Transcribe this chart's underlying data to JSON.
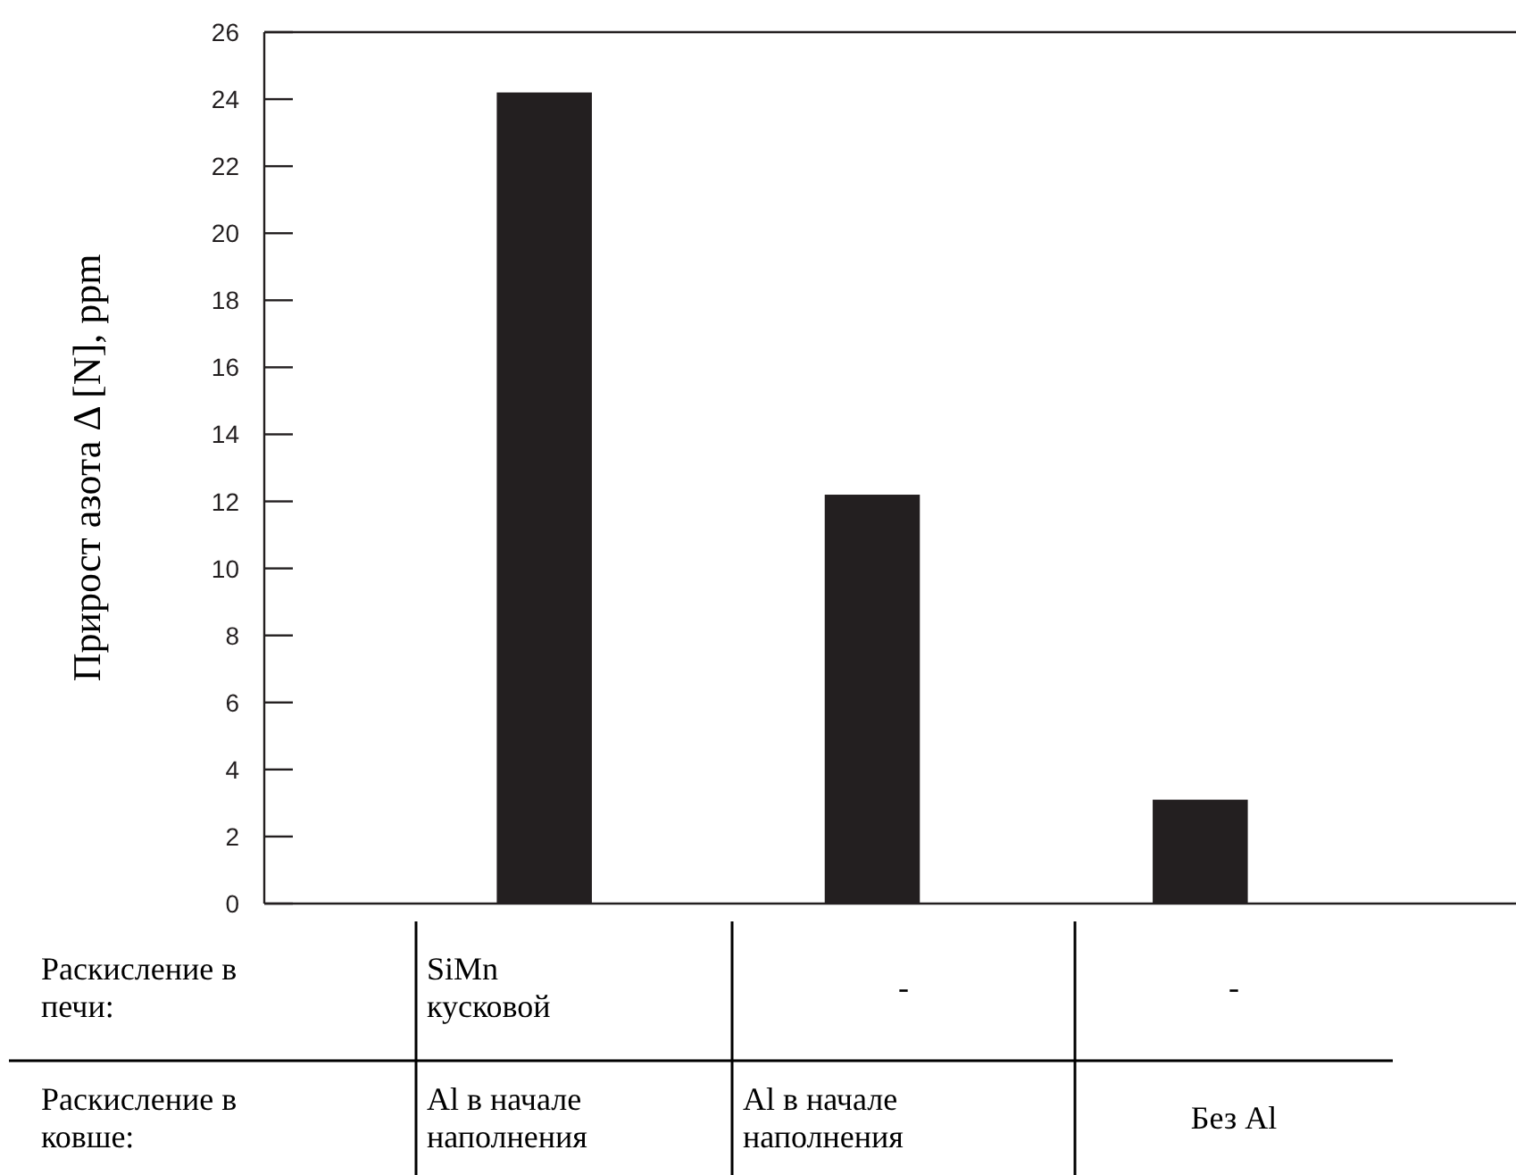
{
  "chart_data": {
    "type": "bar",
    "ylabel": "Прирост азота Δ [N], ppm",
    "categories": [
      "SiMn кусковой",
      "-",
      "-"
    ],
    "values": [
      24.2,
      12.2,
      3.1
    ],
    "color": "#231f20",
    "ylim": [
      0,
      26
    ],
    "yticks": [
      0,
      2,
      4,
      6,
      8,
      10,
      12,
      14,
      16,
      18,
      20,
      22,
      24,
      26
    ],
    "grid": false,
    "annotations": [
      "Раскисление в печи:",
      "Раскисление в ковше:",
      "Al в начале наполнения",
      "Al в начале наполнения",
      "Без Al"
    ]
  }
}
